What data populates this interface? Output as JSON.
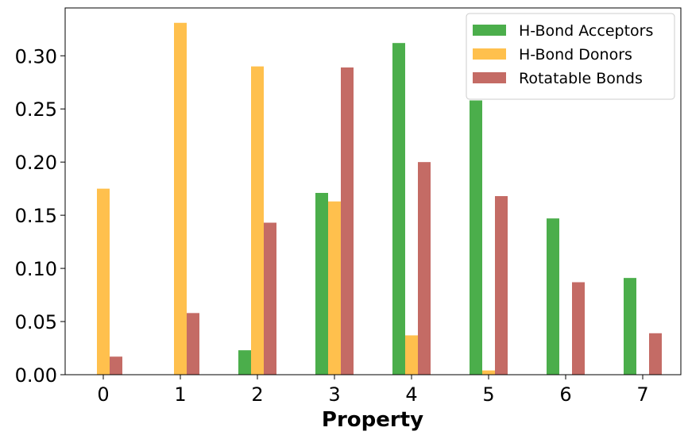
{
  "chart_data": {
    "type": "bar",
    "title": "",
    "xlabel": "Property",
    "ylabel": "",
    "categories": [
      "0",
      "1",
      "2",
      "3",
      "4",
      "5",
      "6",
      "7"
    ],
    "ylim": [
      0,
      0.345
    ],
    "yticks": [
      "0.00",
      "0.05",
      "0.10",
      "0.15",
      "0.20",
      "0.25",
      "0.30"
    ],
    "grid": false,
    "legend_position": "top-right",
    "series": [
      {
        "name": "H-Bond Acceptors",
        "color": "#2ca02c",
        "opacity": 0.85,
        "values": [
          0.0,
          0.0,
          0.023,
          0.171,
          0.312,
          0.258,
          0.147,
          0.091
        ]
      },
      {
        "name": "H-Bond Donors",
        "color": "#ffb020",
        "opacity": 0.8,
        "values": [
          0.175,
          0.331,
          0.29,
          0.163,
          0.037,
          0.004,
          0.0,
          0.0
        ]
      },
      {
        "name": "Rotatable Bonds",
        "color": "#b03a32",
        "opacity": 0.75,
        "values": [
          0.017,
          0.058,
          0.143,
          0.289,
          0.2,
          0.168,
          0.087,
          0.039
        ]
      }
    ]
  }
}
